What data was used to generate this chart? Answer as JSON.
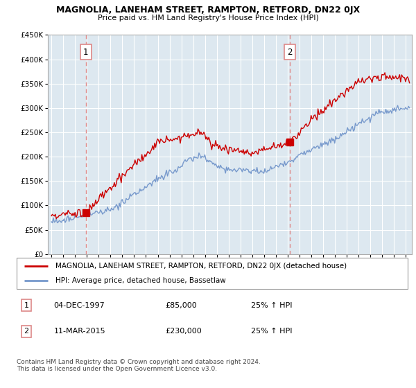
{
  "title": "MAGNOLIA, LANEHAM STREET, RAMPTON, RETFORD, DN22 0JX",
  "subtitle": "Price paid vs. HM Land Registry's House Price Index (HPI)",
  "legend_line1": "MAGNOLIA, LANEHAM STREET, RAMPTON, RETFORD, DN22 0JX (detached house)",
  "legend_line2": "HPI: Average price, detached house, Bassetlaw",
  "annotation1_label": "1",
  "annotation1_date": "04-DEC-1997",
  "annotation1_price": "£85,000",
  "annotation1_hpi": "25% ↑ HPI",
  "annotation2_label": "2",
  "annotation2_date": "11-MAR-2015",
  "annotation2_price": "£230,000",
  "annotation2_hpi": "25% ↑ HPI",
  "footer": "Contains HM Land Registry data © Crown copyright and database right 2024.\nThis data is licensed under the Open Government Licence v3.0.",
  "vline1_x": 1997.92,
  "vline2_x": 2015.19,
  "point1_x": 1997.92,
  "point1_y": 85000,
  "point2_x": 2015.19,
  "point2_y": 230000,
  "ylim": [
    0,
    450000
  ],
  "xlim": [
    1994.7,
    2025.5
  ],
  "red_color": "#cc0000",
  "blue_color": "#7799cc",
  "vline_color": "#dd8888",
  "chart_bg": "#dde8f0",
  "background_color": "#ffffff",
  "grid_color": "#ffffff"
}
